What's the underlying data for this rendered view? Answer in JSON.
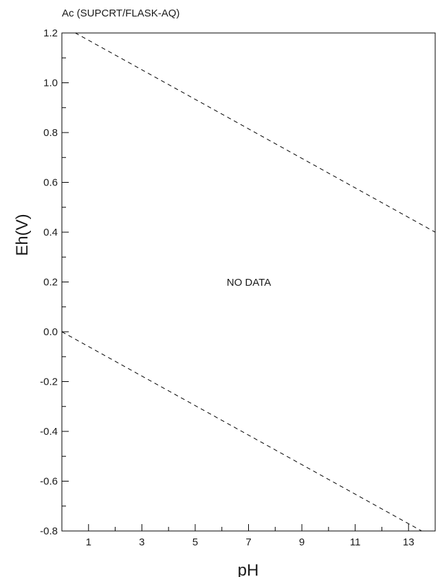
{
  "chart_data": {
    "type": "line",
    "title": "Ac (SUPCRT/FLASK-AQ)",
    "xlabel": "pH",
    "ylabel": "Eh(V)",
    "xlim": [
      0,
      14
    ],
    "ylim": [
      -0.8,
      1.2
    ],
    "x_tick_labels": [
      "1",
      "3",
      "5",
      "7",
      "9",
      "11",
      "13"
    ],
    "x_tick_values": [
      1,
      3,
      5,
      7,
      9,
      11,
      13
    ],
    "y_tick_labels": [
      "1.2",
      "1.0",
      "0.8",
      "0.6",
      "0.4",
      "0.2",
      "0.0",
      "-0.2",
      "-0.4",
      "-0.6",
      "-0.8"
    ],
    "y_tick_values": [
      1.2,
      1.0,
      0.8,
      0.6,
      0.4,
      0.2,
      0.0,
      -0.2,
      -0.4,
      -0.6,
      -0.8
    ],
    "annotation": "NO DATA",
    "series": [
      {
        "style": "dashed",
        "x": [
          0,
          14
        ],
        "y": [
          1.23,
          0.4
        ]
      },
      {
        "style": "dashed",
        "x": [
          0,
          14
        ],
        "y": [
          0.0,
          -0.83
        ]
      }
    ],
    "grid": false
  }
}
